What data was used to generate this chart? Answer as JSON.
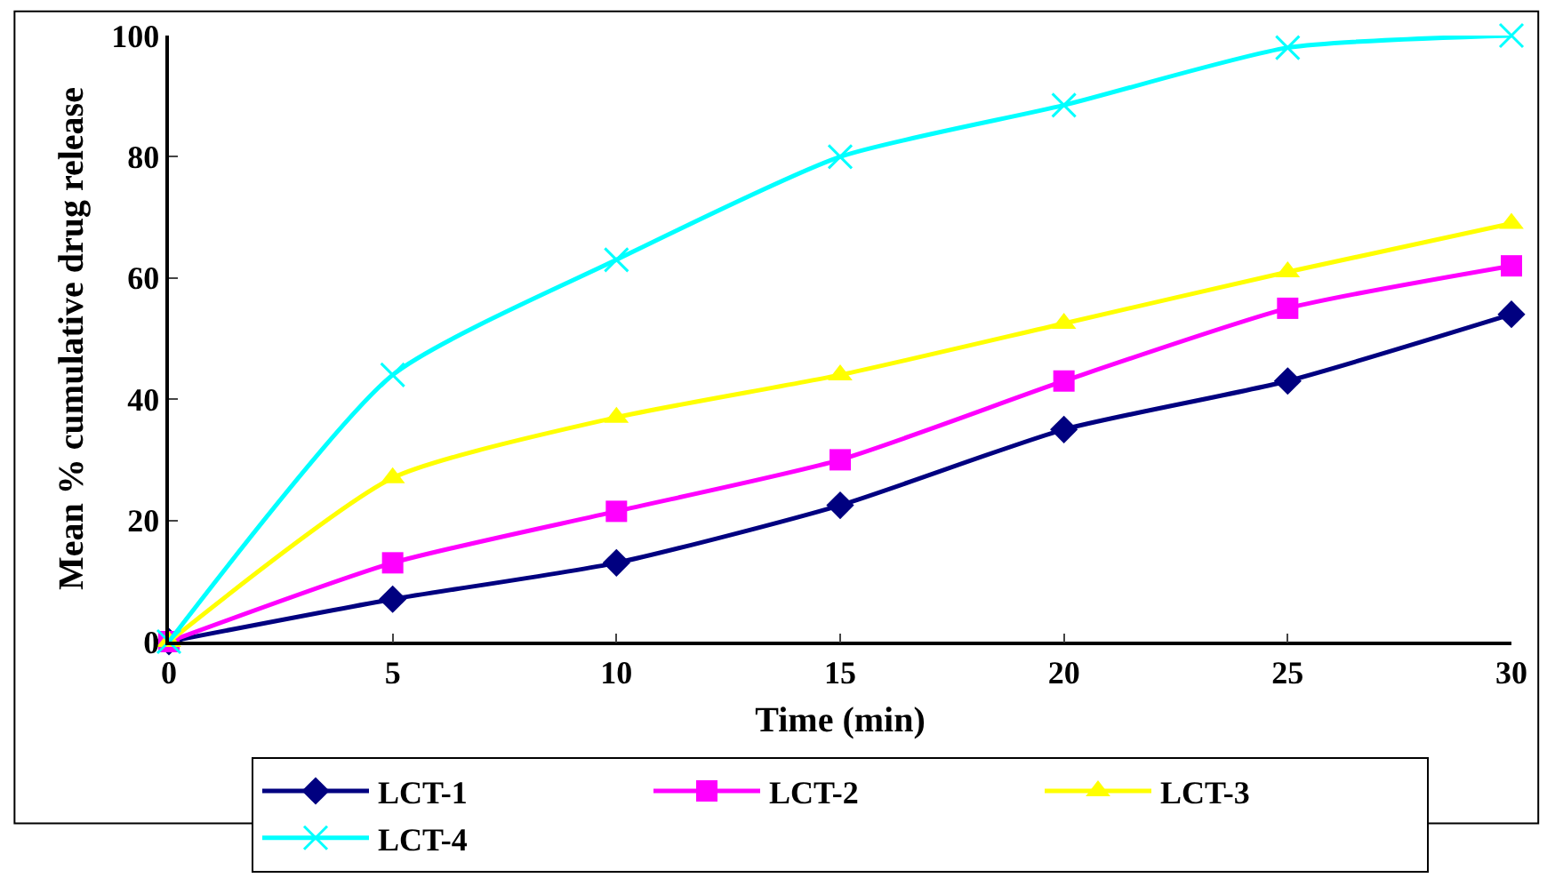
{
  "chart_data": {
    "type": "line",
    "xlabel": "Time (min)",
    "ylabel": "Mean % cumulative drug release",
    "x": [
      0,
      5,
      10,
      15,
      20,
      25,
      30
    ],
    "series": [
      {
        "name": "LCT-1",
        "color": "#000080",
        "marker": "diamond",
        "values": [
          0,
          7,
          13,
          22.5,
          35,
          43,
          54
        ]
      },
      {
        "name": "LCT-2",
        "color": "#ff00ff",
        "marker": "square",
        "values": [
          0,
          13,
          21.5,
          30,
          43,
          55,
          62
        ]
      },
      {
        "name": "LCT-3",
        "color": "#ffff00",
        "marker": "triangle",
        "values": [
          0,
          27,
          37,
          44,
          52.5,
          61,
          69
        ]
      },
      {
        "name": "LCT-4",
        "color": "#00ffff",
        "marker": "cross",
        "values": [
          0,
          44,
          63,
          80,
          88.5,
          98,
          100
        ]
      }
    ],
    "xlim": [
      0,
      30
    ],
    "xticks": [
      0,
      5,
      10,
      15,
      20,
      25,
      30
    ],
    "ylim": [
      0,
      100
    ],
    "yticks": [
      0,
      20,
      40,
      60,
      80,
      100
    ],
    "grid": false,
    "legend": "bottom",
    "line_style": "solid"
  }
}
